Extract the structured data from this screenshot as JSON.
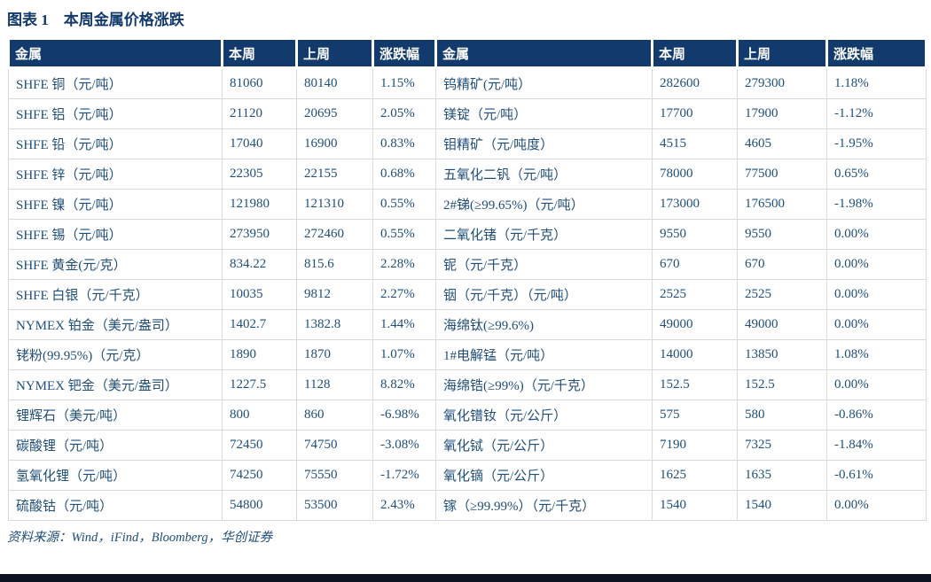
{
  "colors": {
    "header_bg": "#123A6D",
    "header_text": "#FFFFFF",
    "body_text": "#1F4E79",
    "cell_border": "#D9D9D9",
    "bottom_bar": "#0B1220"
  },
  "figure": {
    "title": "图表 1　本周金属价格涨跌"
  },
  "table": {
    "columns": [
      "金属",
      "本周",
      "上周",
      "涨跌幅"
    ],
    "left_rows": [
      [
        "SHFE 铜（元/吨）",
        "81060",
        "80140",
        "1.15%"
      ],
      [
        "SHFE 铝（元/吨）",
        "21120",
        "20695",
        "2.05%"
      ],
      [
        "SHFE 铅（元/吨）",
        "17040",
        "16900",
        "0.83%"
      ],
      [
        "SHFE 锌（元/吨）",
        "22305",
        "22155",
        "0.68%"
      ],
      [
        "SHFE 镍（元/吨）",
        "121980",
        "121310",
        "0.55%"
      ],
      [
        "SHFE 锡（元/吨）",
        "273950",
        "272460",
        "0.55%"
      ],
      [
        "SHFE 黄金(元/克）",
        "834.22",
        "815.6",
        "2.28%"
      ],
      [
        "SHFE 白银（元/千克）",
        "10035",
        "9812",
        "2.27%"
      ],
      [
        "NYMEX 铂金（美元/盎司）",
        "1402.7",
        "1382.8",
        "1.44%"
      ],
      [
        "铑粉(99.95%)（元/克）",
        "1890",
        "1870",
        "1.07%"
      ],
      [
        "NYMEX 钯金（美元/盎司）",
        "1227.5",
        "1128",
        "8.82%"
      ],
      [
        "锂辉石（美元/吨）",
        "800",
        "860",
        "-6.98%"
      ],
      [
        "碳酸锂（元/吨）",
        "72450",
        "74750",
        "-3.08%"
      ],
      [
        "氢氧化锂（元/吨）",
        "74250",
        "75550",
        "-1.72%"
      ],
      [
        "硫酸钴（元/吨）",
        "54800",
        "53500",
        "2.43%"
      ]
    ],
    "right_rows": [
      [
        "钨精矿(元/吨）",
        "282600",
        "279300",
        "1.18%"
      ],
      [
        "镁锭（元/吨）",
        "17700",
        "17900",
        "-1.12%"
      ],
      [
        "钼精矿（元/吨度）",
        "4515",
        "4605",
        "-1.95%"
      ],
      [
        "五氧化二钒（元/吨）",
        "78000",
        "77500",
        "0.65%"
      ],
      [
        "2#锑(≥99.65%)（元/吨）",
        "173000",
        "176500",
        "-1.98%"
      ],
      [
        "二氧化锗（元/千克）",
        "9550",
        "9550",
        "0.00%"
      ],
      [
        "铌（元/千克）",
        "670",
        "670",
        "0.00%"
      ],
      [
        "铟（元/千克）（元/吨）",
        "2525",
        "2525",
        "0.00%"
      ],
      [
        "海绵钛(≥99.6%)",
        "49000",
        "49000",
        "0.00%"
      ],
      [
        "1#电解锰（元/吨）",
        "14000",
        "13850",
        "1.08%"
      ],
      [
        "海绵锆(≥99%)（元/千克）",
        "152.5",
        "152.5",
        "0.00%"
      ],
      [
        "氧化镨钕（元/公斤）",
        "575",
        "580",
        "-0.86%"
      ],
      [
        "氧化铽（元/公斤）",
        "7190",
        "7325",
        "-1.84%"
      ],
      [
        "氧化镝（元/公斤）",
        "1625",
        "1635",
        "-0.61%"
      ],
      [
        "镓（≥99.99%）（元/千克）",
        "1540",
        "1540",
        "0.00%"
      ]
    ]
  },
  "source_note": "资料来源：Wind，iFind，Bloomberg，华创证券"
}
